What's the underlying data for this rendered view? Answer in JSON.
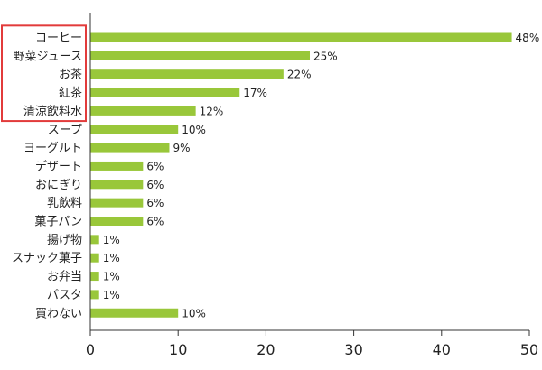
{
  "chart_data": {
    "type": "bar",
    "orientation": "horizontal",
    "categories": [
      "コーヒー",
      "野菜ジュース",
      "お茶",
      "紅茶",
      "清涼飲料水",
      "スープ",
      "ヨーグルト",
      "デザート",
      "おにぎり",
      "乳飲料",
      "菓子パン",
      "揚げ物",
      "スナック菓子",
      "お弁当",
      "パスタ",
      "買わない"
    ],
    "values": [
      48,
      25,
      22,
      17,
      12,
      10,
      9,
      6,
      6,
      6,
      6,
      1,
      1,
      1,
      1,
      10
    ],
    "value_labels": [
      "48%",
      "25%",
      "22%",
      "17%",
      "12%",
      "10%",
      "9%",
      "6%",
      "6%",
      "6%",
      "6%",
      "1%",
      "1%",
      "1%",
      "1%",
      "10%"
    ],
    "xlim": [
      0,
      50
    ],
    "xticks": [
      0,
      10,
      20,
      30,
      40,
      50
    ],
    "grid": false,
    "colors": {
      "bar": "#99c73a",
      "highlight_box": "#e23b3b",
      "axis": "#333333"
    },
    "highlighted_categories": [
      "コーヒー",
      "野菜ジュース",
      "お茶",
      "紅茶",
      "清涼飲料水"
    ]
  }
}
